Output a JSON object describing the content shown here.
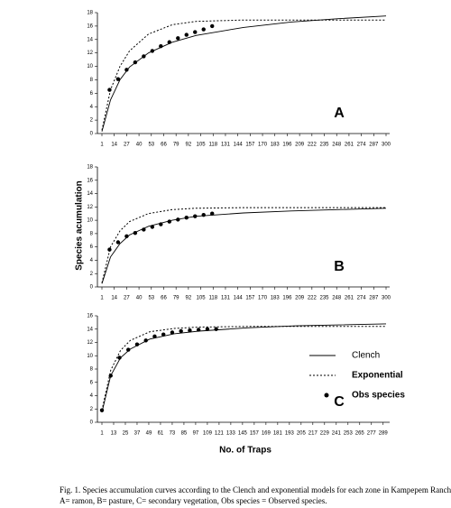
{
  "y_label": "Species acumulation",
  "x_label": "No. of Traps",
  "caption": [
    "Fig. 1. Species accumulation curves according to the Clench and exponential models for each zone in Kampepem Ranch.",
    "A= ramon, B= pasture, C= secondary vegetation, Obs species = Observed species."
  ],
  "chart_data": [
    {
      "type": "line",
      "annotation": "A",
      "xlim": [
        1,
        300
      ],
      "ylim": [
        0,
        18
      ],
      "yticks": [
        0,
        2,
        4,
        6,
        8,
        10,
        12,
        14,
        16,
        18
      ],
      "xticks": [
        1,
        14,
        27,
        40,
        53,
        66,
        79,
        92,
        105,
        118,
        131,
        144,
        157,
        170,
        183,
        196,
        209,
        222,
        235,
        248,
        261,
        274,
        287,
        300
      ],
      "series": [
        {
          "style": "solid",
          "color": "#000000",
          "x": [
            1,
            10,
            20,
            30,
            50,
            75,
            100,
            150,
            200,
            250,
            300
          ],
          "values": [
            0.3,
            5,
            8,
            9.9,
            12,
            13.6,
            14.6,
            15.8,
            16.6,
            17.1,
            17.5
          ]
        },
        {
          "style": "dotted",
          "color": "#000000",
          "x": [
            1,
            10,
            20,
            30,
            50,
            75,
            100,
            150,
            200,
            300
          ],
          "values": [
            0.5,
            6.5,
            10,
            12.3,
            14.8,
            16.2,
            16.7,
            16.9,
            16.9,
            16.9
          ]
        },
        {
          "style": "markers",
          "color": "#000000",
          "x": [
            9,
            18,
            27,
            36,
            45,
            54,
            63,
            72,
            81,
            90,
            99,
            108,
            117
          ],
          "values": [
            6.5,
            8.1,
            9.5,
            10.6,
            11.5,
            12.3,
            13,
            13.6,
            14.2,
            14.7,
            15.1,
            15.5,
            16
          ]
        }
      ]
    },
    {
      "type": "line",
      "annotation": "B",
      "xlim": [
        1,
        300
      ],
      "ylim": [
        0,
        18
      ],
      "yticks": [
        0,
        2,
        4,
        6,
        8,
        10,
        12,
        14,
        16,
        18
      ],
      "xticks": [
        1,
        14,
        27,
        40,
        53,
        66,
        79,
        92,
        105,
        118,
        131,
        144,
        157,
        170,
        183,
        196,
        209,
        222,
        235,
        248,
        261,
        274,
        287,
        300
      ],
      "series": [
        {
          "style": "solid",
          "color": "#000000",
          "x": [
            1,
            10,
            20,
            30,
            50,
            75,
            100,
            150,
            200,
            300
          ],
          "values": [
            0.5,
            4.5,
            6.5,
            7.8,
            9.1,
            10,
            10.6,
            11.1,
            11.4,
            11.8
          ]
        },
        {
          "style": "dotted",
          "color": "#000000",
          "x": [
            1,
            10,
            20,
            30,
            50,
            75,
            100,
            150,
            300
          ],
          "values": [
            0.6,
            6,
            8.4,
            9.8,
            11,
            11.6,
            11.8,
            11.9,
            11.9
          ]
        },
        {
          "style": "markers",
          "color": "#000000",
          "x": [
            9,
            18,
            27,
            36,
            45,
            54,
            63,
            72,
            81,
            90,
            99,
            108,
            117
          ],
          "values": [
            5.6,
            6.7,
            7.6,
            8.1,
            8.6,
            9,
            9.4,
            9.8,
            10.1,
            10.4,
            10.6,
            10.8,
            11
          ]
        }
      ]
    },
    {
      "type": "line",
      "annotation": "C",
      "xlim": [
        1,
        292
      ],
      "ylim": [
        0,
        16
      ],
      "yticks": [
        0,
        2,
        4,
        6,
        8,
        10,
        12,
        14,
        16
      ],
      "legend": "right",
      "xticks": [
        1,
        13,
        25,
        37,
        49,
        61,
        73,
        85,
        97,
        109,
        121,
        133,
        145,
        157,
        169,
        181,
        193,
        205,
        217,
        229,
        241,
        253,
        265,
        277,
        289
      ],
      "series": [
        {
          "name": "Clench",
          "style": "solid",
          "color": "#000000",
          "x": [
            1,
            10,
            20,
            30,
            50,
            75,
            100,
            150,
            200,
            292
          ],
          "values": [
            1.5,
            7,
            9.7,
            11,
            12.5,
            13.3,
            13.7,
            14.2,
            14.5,
            14.8
          ]
        },
        {
          "name": "Exponential",
          "style": "dotted",
          "color": "#000000",
          "x": [
            1,
            10,
            20,
            30,
            50,
            75,
            100,
            150,
            292
          ],
          "values": [
            1.8,
            7.8,
            10.8,
            12.3,
            13.6,
            14.1,
            14.3,
            14.4,
            14.4
          ]
        },
        {
          "name": "Obs species",
          "style": "markers",
          "color": "#000000",
          "x": [
            1,
            10,
            19,
            28,
            37,
            46,
            55,
            64,
            73,
            82,
            91,
            100,
            109,
            118
          ],
          "values": [
            1.8,
            7,
            9.7,
            10.9,
            11.7,
            12.3,
            12.9,
            13.2,
            13.5,
            13.7,
            13.8,
            13.9,
            14,
            14
          ]
        }
      ]
    }
  ]
}
